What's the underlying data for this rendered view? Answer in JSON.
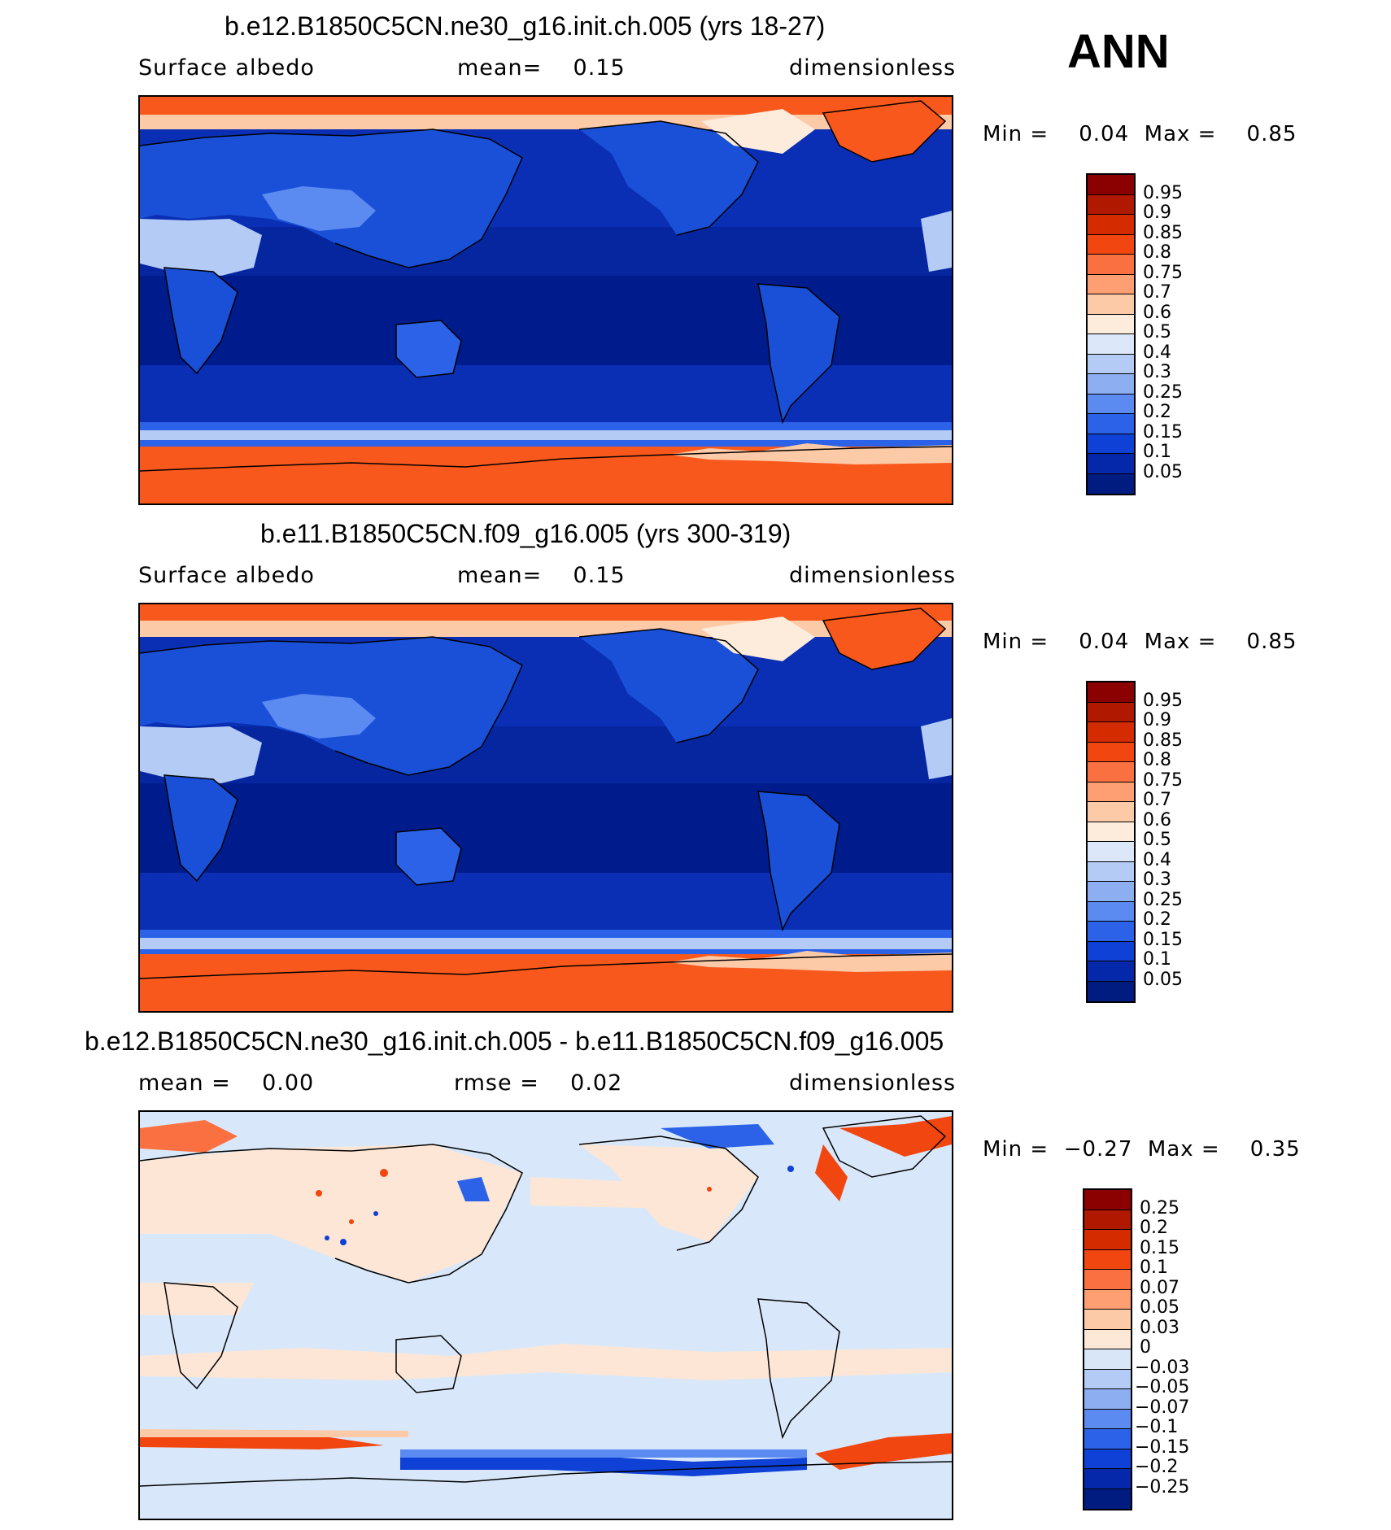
{
  "season": "ANN",
  "panels": [
    {
      "title": "b.e12.B1850C5CN.ne30_g16.init.ch.005 (yrs 18-27)",
      "left_label": "Surface albedo",
      "center_label": "mean=    0.15",
      "right_label": "dimensionless",
      "minmax": "Min =    0.04  Max =    0.85",
      "colorbar": {
        "labels": [
          "0.95",
          "0.9",
          "0.85",
          "0.8",
          "0.75",
          "0.7",
          "0.6",
          "0.5",
          "0.4",
          "0.3",
          "0.25",
          "0.2",
          "0.15",
          "0.1",
          "0.05"
        ],
        "colors": [
          "#8b0000",
          "#b01800",
          "#d42c00",
          "#f14610",
          "#fb7040",
          "#fd9e73",
          "#fdcaa8",
          "#fdebdc",
          "#dce8fa",
          "#b3cbf5",
          "#8eaef2",
          "#5b8bf0",
          "#2b62e8",
          "#0f41d6",
          "#0528aa",
          "#001c80"
        ]
      }
    },
    {
      "title": "b.e11.B1850C5CN.f09_g16.005 (yrs 300-319)",
      "left_label": "Surface albedo",
      "center_label": "mean=    0.15",
      "right_label": "dimensionless",
      "minmax": "Min =    0.04  Max =    0.85",
      "colorbar": {
        "labels": [
          "0.95",
          "0.9",
          "0.85",
          "0.8",
          "0.75",
          "0.7",
          "0.6",
          "0.5",
          "0.4",
          "0.3",
          "0.25",
          "0.2",
          "0.15",
          "0.1",
          "0.05"
        ],
        "colors": [
          "#8b0000",
          "#b01800",
          "#d42c00",
          "#f14610",
          "#fb7040",
          "#fd9e73",
          "#fdcaa8",
          "#fdebdc",
          "#dce8fa",
          "#b3cbf5",
          "#8eaef2",
          "#5b8bf0",
          "#2b62e8",
          "#0f41d6",
          "#0528aa",
          "#001c80"
        ]
      }
    },
    {
      "title": "b.e12.B1850C5CN.ne30_g16.init.ch.005 - b.e11.B1850C5CN.f09_g16.005",
      "left_label": "mean =    0.00",
      "center_label": "rmse =    0.02",
      "right_label": "dimensionless",
      "minmax": "Min =  −0.27  Max =    0.35",
      "colorbar": {
        "labels": [
          "0.25",
          "0.2",
          "0.15",
          "0.1",
          "0.07",
          "0.05",
          "0.03",
          "0",
          "−0.03",
          "−0.05",
          "−0.07",
          "−0.1",
          "−0.15",
          "−0.2",
          "−0.25"
        ],
        "colors": [
          "#8b0000",
          "#b01800",
          "#d42c00",
          "#f14610",
          "#fb7040",
          "#fd9e73",
          "#fdcaa8",
          "#fde8d8",
          "#d8e6f8",
          "#b3cbf5",
          "#8eaef2",
          "#5b8bf0",
          "#2b62e8",
          "#0f41d6",
          "#0528aa",
          "#001c80"
        ]
      }
    }
  ],
  "map_colors": {
    "polar_high": "#f8581c",
    "tropical_ocean": "#001c8c",
    "mid_ocean": "#0a2fb4",
    "land": "#1a50d8",
    "snow": "#fdcaa8",
    "diff_background": "#d8e8fa",
    "diff_warm": "#fde6d6"
  }
}
